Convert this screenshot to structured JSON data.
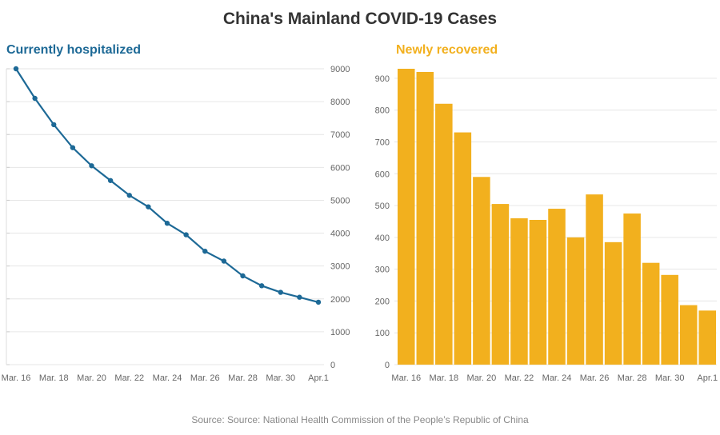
{
  "title": "China's Mainland COVID-19 Cases",
  "source": "Source: Source: National Health Commission of the People’s Republic of China",
  "colors": {
    "line": "#1d6996",
    "bar": "#f2b01e",
    "grid": "#e6e6e6",
    "text": "#666666"
  },
  "chart_data": [
    {
      "type": "line",
      "title": "Currently hospitalized",
      "x": [
        "Mar. 16",
        "Mar. 17",
        "Mar. 18",
        "Mar. 19",
        "Mar. 20",
        "Mar. 21",
        "Mar. 22",
        "Mar. 23",
        "Mar. 24",
        "Mar. 25",
        "Mar. 26",
        "Mar. 27",
        "Mar. 28",
        "Mar. 29",
        "Mar. 30",
        "Mar. 31",
        "Apr.1"
      ],
      "values": [
        9000,
        8100,
        7300,
        6600,
        6050,
        5600,
        5150,
        4800,
        4300,
        3950,
        3450,
        3150,
        2700,
        2400,
        2200,
        2050,
        1900
      ],
      "x_tick_labels": [
        "Mar. 16",
        "Mar. 18",
        "Mar. 20",
        "Mar. 22",
        "Mar. 24",
        "Mar. 26",
        "Mar. 28",
        "Mar. 30",
        "Apr.1"
      ],
      "y_ticks": [
        0,
        1000,
        2000,
        3000,
        4000,
        5000,
        6000,
        7000,
        8000,
        9000
      ],
      "ylim": [
        0,
        9000
      ],
      "y_axis_side": "right",
      "grid": true
    },
    {
      "type": "bar",
      "title": "Newly recovered",
      "categories": [
        "Mar. 16",
        "Mar. 17",
        "Mar. 18",
        "Mar. 19",
        "Mar. 20",
        "Mar. 21",
        "Mar. 22",
        "Mar. 23",
        "Mar. 24",
        "Mar. 25",
        "Mar. 26",
        "Mar. 27",
        "Mar. 28",
        "Mar. 29",
        "Mar. 30",
        "Mar. 31",
        "Apr.1"
      ],
      "values": [
        930,
        920,
        820,
        730,
        590,
        505,
        460,
        455,
        490,
        400,
        535,
        385,
        475,
        320,
        282,
        187,
        170
      ],
      "x_tick_labels": [
        "Mar. 16",
        "Mar. 18",
        "Mar. 20",
        "Mar. 22",
        "Mar. 24",
        "Mar. 26",
        "Mar. 28",
        "Mar. 30",
        "Apr.1"
      ],
      "y_ticks": [
        0,
        100,
        200,
        300,
        400,
        500,
        600,
        700,
        800,
        900
      ],
      "ylim": [
        0,
        930
      ],
      "y_axis_side": "left",
      "grid": true
    }
  ]
}
